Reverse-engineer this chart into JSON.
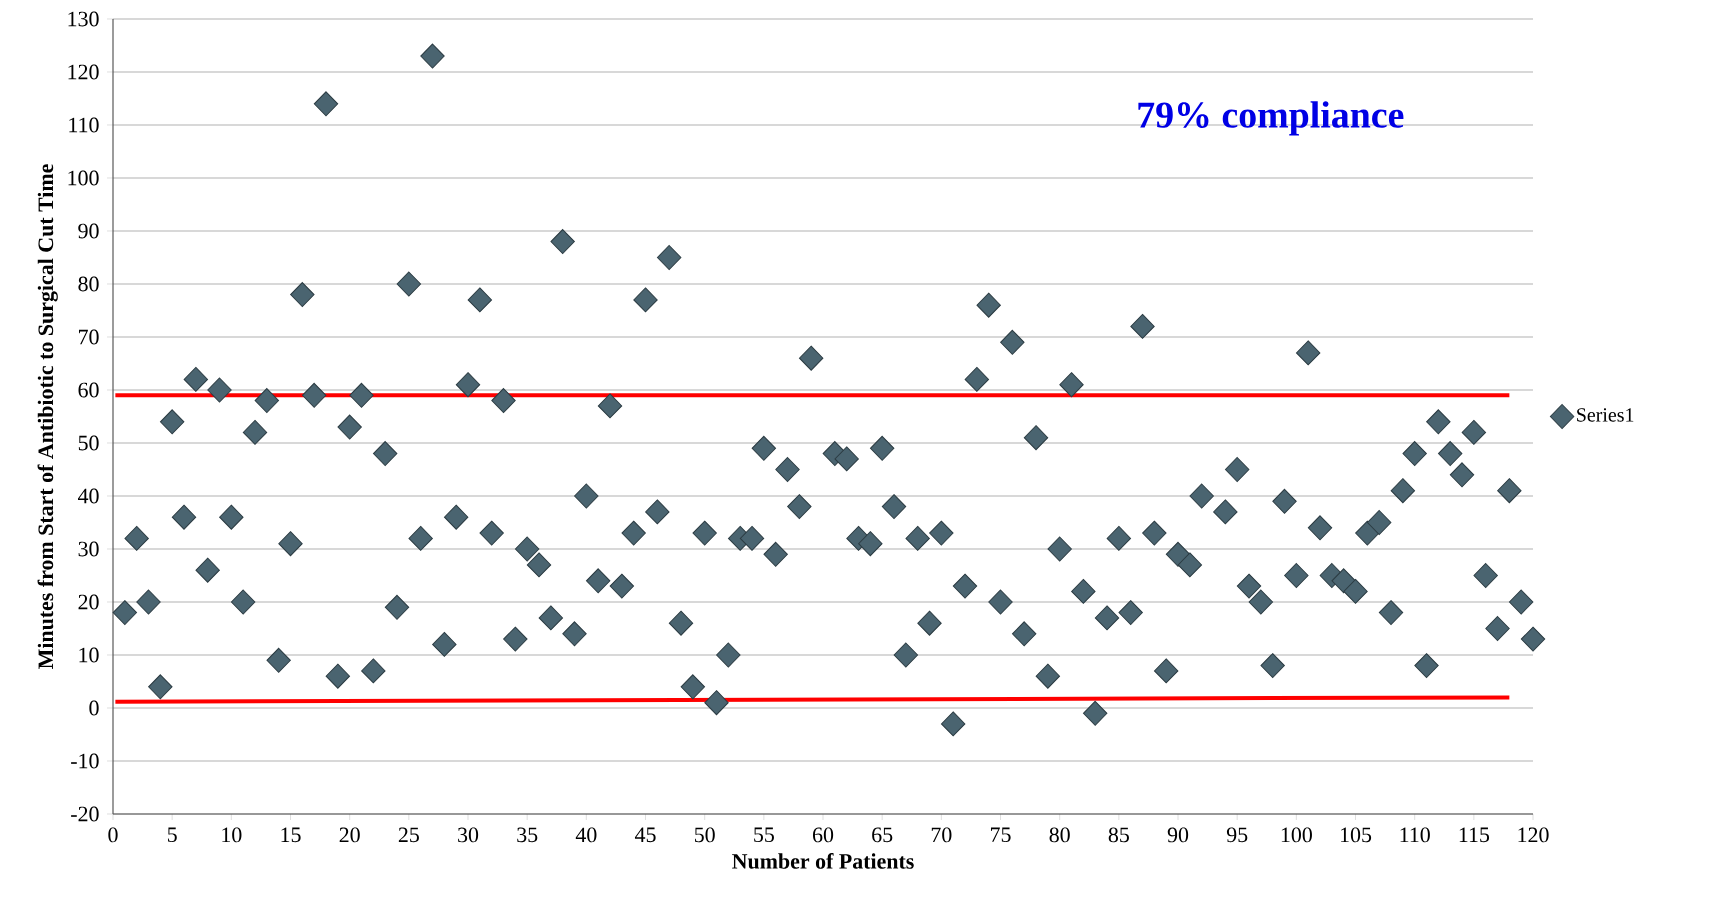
{
  "chart_data": {
    "type": "scatter",
    "xlabel": "Number of Patients",
    "ylabel": "Minutes from Start of Antibiotic to Surgical Cut Time",
    "annotations": [
      "79% compliance"
    ],
    "xlim": [
      0,
      120
    ],
    "ylim": [
      -20,
      130
    ],
    "xticks": [
      0,
      5,
      10,
      15,
      20,
      25,
      30,
      35,
      40,
      45,
      50,
      55,
      60,
      65,
      70,
      75,
      80,
      85,
      90,
      95,
      100,
      105,
      110,
      115,
      120
    ],
    "yticks": [
      -20,
      -10,
      0,
      10,
      20,
      30,
      40,
      50,
      60,
      70,
      80,
      90,
      100,
      110,
      120,
      130
    ],
    "grid": "y",
    "legend": "right",
    "series": [
      {
        "name": "Series1",
        "color": "#4a6470",
        "marker": "diamond",
        "x": [
          1,
          2,
          3,
          4,
          5,
          6,
          7,
          8,
          9,
          10,
          11,
          12,
          13,
          14,
          15,
          16,
          17,
          18,
          19,
          20,
          21,
          22,
          23,
          24,
          25,
          26,
          27,
          28,
          29,
          30,
          31,
          32,
          33,
          34,
          35,
          36,
          37,
          38,
          39,
          40,
          41,
          42,
          43,
          44,
          45,
          46,
          47,
          48,
          49,
          50,
          51,
          52,
          53,
          54,
          55,
          56,
          57,
          58,
          59,
          61,
          62,
          63,
          64,
          65,
          66,
          67,
          68,
          69,
          70,
          71,
          72,
          73,
          74,
          75,
          76,
          77,
          78,
          79,
          80,
          81,
          82,
          83,
          84,
          85,
          86,
          87,
          88,
          89,
          90,
          91,
          92,
          94,
          95,
          96,
          97,
          98,
          99,
          100,
          101,
          102,
          103,
          104,
          105,
          106,
          107,
          108,
          109,
          110,
          111,
          112,
          113,
          114,
          115,
          116,
          117,
          118,
          119,
          120
        ],
        "values": [
          18,
          32,
          20,
          4,
          54,
          36,
          62,
          26,
          60,
          36,
          20,
          52,
          58,
          9,
          31,
          78,
          59,
          114,
          6,
          53,
          59,
          7,
          48,
          19,
          80,
          32,
          123,
          12,
          36,
          61,
          77,
          33,
          58,
          13,
          30,
          27,
          17,
          88,
          14,
          40,
          24,
          57,
          23,
          33,
          77,
          37,
          85,
          16,
          4,
          33,
          1,
          10,
          32,
          32,
          49,
          29,
          45,
          38,
          66,
          48,
          47,
          32,
          31,
          49,
          38,
          10,
          32,
          16,
          33,
          -3,
          23,
          62,
          76,
          20,
          69,
          14,
          51,
          6,
          30,
          61,
          22,
          -1,
          17,
          32,
          18,
          72,
          33,
          7,
          29,
          27,
          40,
          37,
          45,
          23,
          20,
          8,
          39,
          25,
          67,
          34,
          25,
          24,
          22,
          33,
          35,
          18,
          41,
          48,
          8,
          54,
          48,
          44,
          52,
          25,
          15,
          41,
          20,
          13
        ]
      },
      {
        "type": "line",
        "marker": "none",
        "color": "#ff0000",
        "x": [
          0.2,
          118
        ],
        "values": [
          59,
          59
        ]
      },
      {
        "type": "line",
        "marker": "none",
        "color": "#ff0000",
        "x": [
          0.2,
          118
        ],
        "values": [
          1.2,
          2
        ]
      }
    ]
  }
}
